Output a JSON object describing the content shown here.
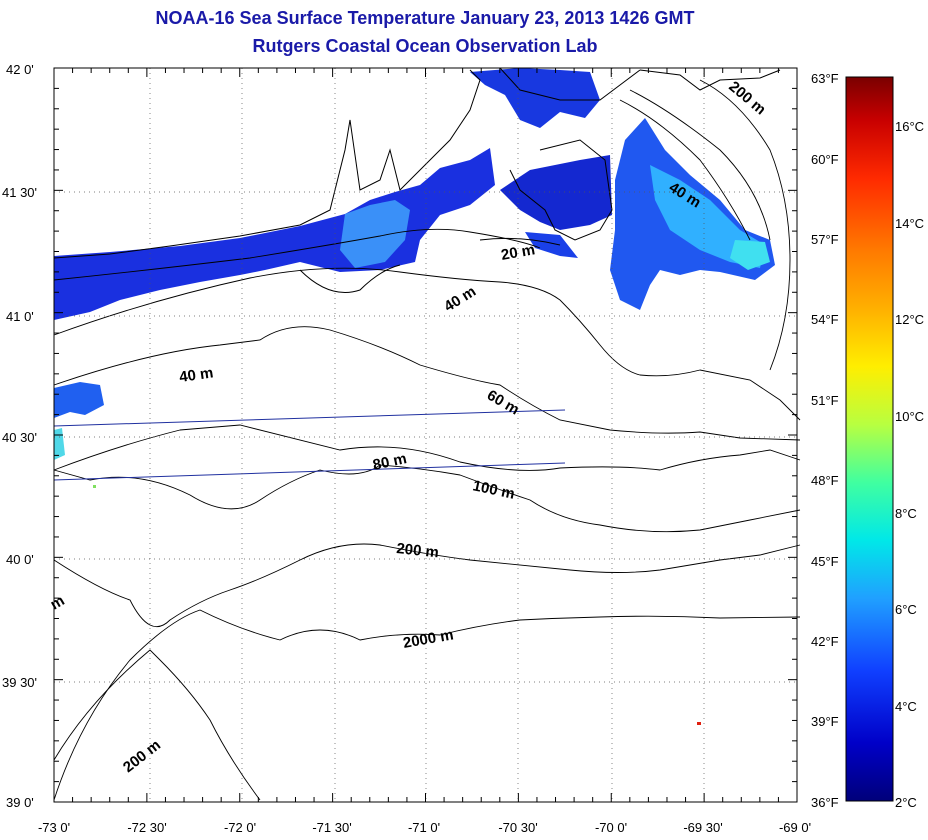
{
  "title": "NOAA-16 Sea Surface Temperature January 23, 2013 1426 GMT",
  "subtitle": "Rutgers Coastal Ocean Observation Lab",
  "axes": {
    "lat_labels": [
      "42 0'",
      "41 30'",
      "41 0'",
      "40 30'",
      "40 0'",
      "39 30'",
      "39 0'"
    ],
    "lon_labels": [
      "-73 0'",
      "-72 30'",
      "-72 0'",
      "-71 30'",
      "-71 0'",
      "-70 30'",
      "-70 0'",
      "-69 30'",
      "-69 0'"
    ],
    "lat_range": [
      39.0,
      42.0
    ],
    "lon_range": [
      -73.0,
      -69.0
    ]
  },
  "depth_labels": {
    "d20": "20 m",
    "d40a": "40 m",
    "d40b": "40 m",
    "d40c": "40 m",
    "d60": "60 m",
    "d80": "80 m",
    "d100": "100 m",
    "d200a": "200 m",
    "d200b": "200 m",
    "d200c": "200 m",
    "d2000": "2000 m",
    "dm": "m"
  },
  "colorbar": {
    "fahrenheit": [
      "63°F",
      "60°F",
      "57°F",
      "54°F",
      "51°F",
      "48°F",
      "45°F",
      "42°F",
      "39°F",
      "36°F"
    ],
    "celsius": [
      "16°C",
      "14°C",
      "12°C",
      "10°C",
      "8°C",
      "6°C",
      "4°C",
      "2°C"
    ],
    "colors": [
      "#7a0000",
      "#c80000",
      "#ff2a00",
      "#ff7a00",
      "#ffb000",
      "#ffee00",
      "#b8ff40",
      "#40ffa0",
      "#00e8e8",
      "#20a0ff",
      "#1040ff",
      "#0000c0",
      "#00007a"
    ]
  },
  "colors": {
    "title": "#1a1aa8",
    "sst_deep_blue": "#1020d8",
    "sst_mid_blue": "#2060f0",
    "sst_light_blue": "#30a8ff",
    "sst_cyan": "#40e0f0",
    "track_line": "#2030a0"
  }
}
